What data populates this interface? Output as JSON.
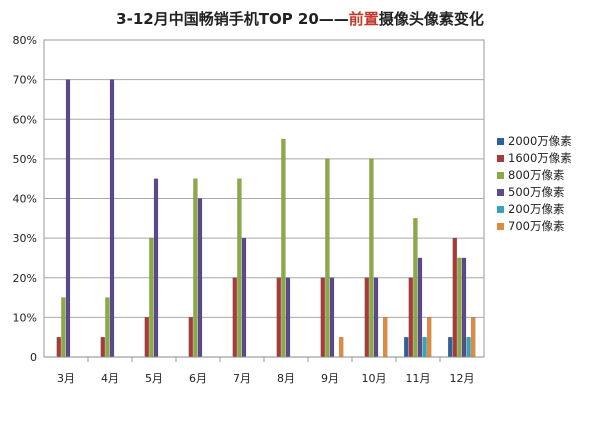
{
  "chart_data": {
    "type": "bar",
    "title_parts": [
      "3-12月中国畅销手机TOP 20——",
      "前置",
      "摄像头像素变化"
    ],
    "categories": [
      "3月",
      "4月",
      "5月",
      "6月",
      "7月",
      "8月",
      "9月",
      "10月",
      "11月",
      "12月"
    ],
    "ylim": [
      0,
      80
    ],
    "yticks": [
      "0",
      "10%",
      "20%",
      "30%",
      "40%",
      "50%",
      "60%",
      "70%",
      "80%"
    ],
    "grid": true,
    "legend_position": "right",
    "series": [
      {
        "name": "2000万像素",
        "color": "#2f5f9e",
        "values": [
          0,
          0,
          0,
          0,
          0,
          0,
          0,
          0,
          5,
          5
        ]
      },
      {
        "name": "1600万像素",
        "color": "#a83a38",
        "values": [
          5,
          5,
          10,
          10,
          20,
          20,
          20,
          20,
          20,
          30
        ]
      },
      {
        "name": "800万像素",
        "color": "#8aaa43",
        "values": [
          15,
          15,
          30,
          45,
          45,
          55,
          50,
          50,
          35,
          25
        ]
      },
      {
        "name": "500万像素",
        "color": "#5c4b8b",
        "values": [
          70,
          70,
          45,
          40,
          30,
          20,
          20,
          20,
          25,
          25
        ]
      },
      {
        "name": "200万像素",
        "color": "#35a3b9",
        "values": [
          0,
          0,
          0,
          0,
          0,
          0,
          0,
          0,
          5,
          5
        ]
      },
      {
        "name": "700万像素",
        "color": "#e08a3c",
        "values": [
          0,
          0,
          0,
          0,
          0,
          0,
          5,
          10,
          10,
          10
        ]
      }
    ]
  }
}
